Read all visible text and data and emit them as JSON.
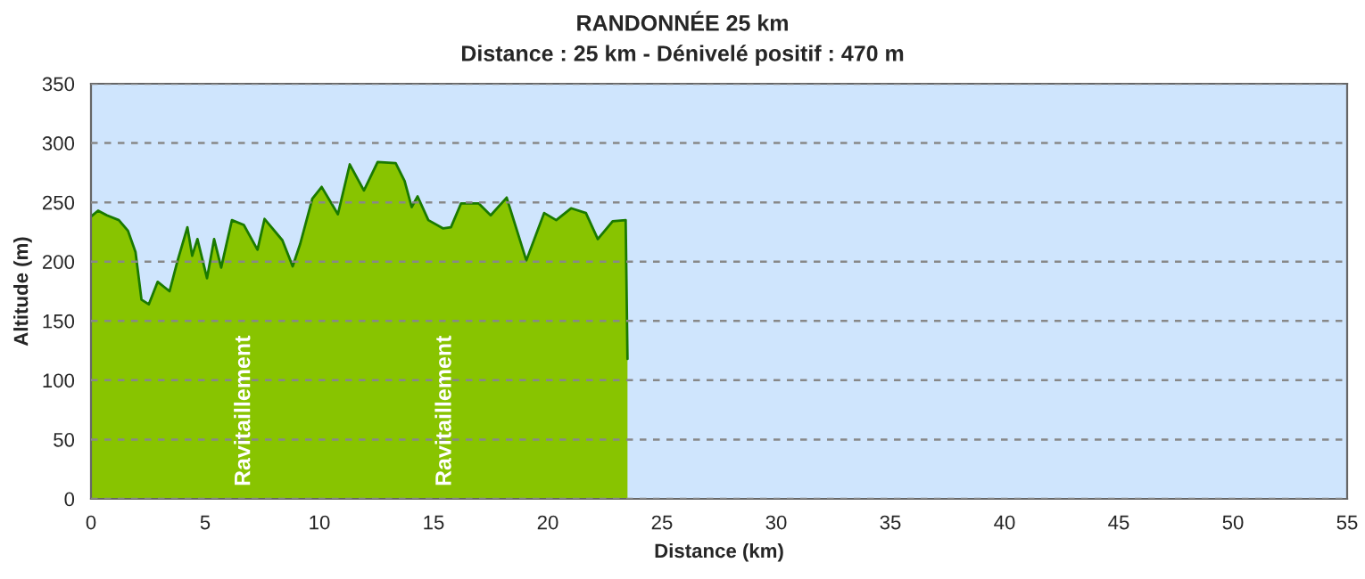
{
  "chart_data": {
    "type": "area",
    "title": "RANDONNÉE 25 km",
    "subtitle": "Distance : 25 km - Dénivelé positif : 470 m",
    "xlabel": "Distance (km)",
    "ylabel": "Altitude (m)",
    "x": [
      0,
      0.31,
      0.7,
      1.22,
      1.62,
      1.95,
      2.21,
      2.53,
      2.92,
      3.44,
      3.78,
      4.22,
      4.43,
      4.66,
      5.08,
      5.39,
      5.7,
      6.17,
      6.69,
      7.29,
      7.6,
      8.38,
      8.83,
      9.16,
      9.69,
      10.1,
      10.81,
      11.33,
      11.95,
      12.55,
      13.34,
      13.73,
      14.04,
      14.3,
      14.77,
      15.42,
      15.76,
      16.2,
      16.98,
      17.5,
      18.2,
      18.67,
      19.06,
      19.84,
      20.37,
      21.02,
      21.67,
      22.19,
      22.84,
      23.41,
      23.49
    ],
    "series": [
      {
        "color": "#88c400",
        "values": [
          238,
          243,
          239,
          235,
          226,
          208,
          168,
          164,
          183,
          175,
          200,
          229,
          205,
          219,
          186,
          219,
          195,
          235,
          231,
          210,
          236,
          218,
          196,
          215,
          253,
          263,
          240,
          282,
          260,
          284,
          283,
          268,
          246,
          255,
          235,
          228,
          229,
          249,
          249,
          239,
          254,
          225,
          201,
          241,
          235,
          245,
          241,
          219,
          234,
          235,
          118
        ]
      }
    ],
    "xlim": [
      0,
      55
    ],
    "xticks": [
      0,
      5,
      10,
      15,
      20,
      25,
      30,
      35,
      40,
      45,
      50,
      55
    ],
    "ylim": [
      0,
      350
    ],
    "yticks": [
      0,
      50,
      100,
      150,
      200,
      250,
      300,
      350
    ],
    "grid": "y",
    "annotations": [
      "Ravitaillement",
      "Ravitaillement"
    ]
  }
}
